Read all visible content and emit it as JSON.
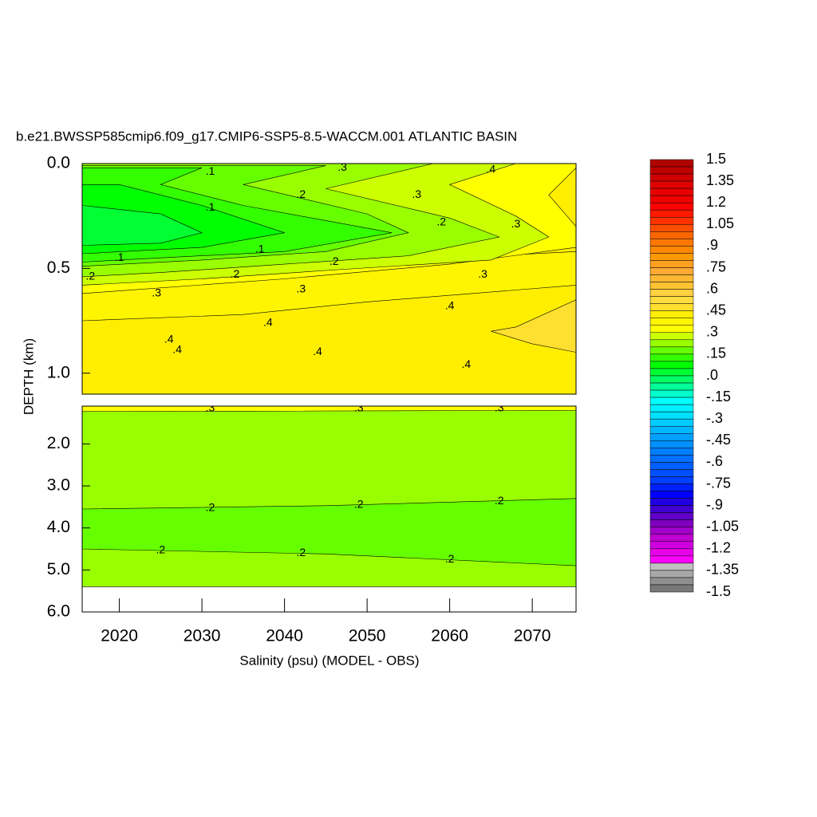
{
  "chart_data": {
    "type": "contour",
    "title": "b.e21.BWSSP585cmip6.f09_g17.CMIP6-SSP5-8.5-WACCM.001 ATLANTIC BASIN",
    "xlabel": "Salinity (psu) (MODEL - OBS)",
    "ylabel": "DEPTH (km)",
    "xlim": [
      2015.5,
      2075.3
    ],
    "xticks": [
      2020,
      2030,
      2040,
      2050,
      2060,
      2070
    ],
    "panels": [
      {
        "ylim": [
          0,
          1.1
        ],
        "yticks": [
          {
            "value": 0,
            "label": "0.0"
          },
          {
            "value": 0.5,
            "label": "0.5"
          },
          {
            "value": 1,
            "label": "1.0"
          }
        ],
        "regions": [
          {
            "level": 0.42,
            "polygon": [
              [
                2015.5,
                0
              ],
              [
                2075.3,
                0
              ],
              [
                2075.3,
                1.1
              ],
              [
                2015.5,
                1.1
              ]
            ]
          },
          {
            "level": 0.47,
            "polygon": [
              [
                2075.3,
                0.65
              ],
              [
                2068,
                0.78
              ],
              [
                2065,
                0.8
              ],
              [
                2070,
                0.86
              ],
              [
                2075.3,
                0.9
              ]
            ]
          },
          {
            "level": 0.37,
            "polygon": [
              [
                2015.5,
                0.55
              ],
              [
                2040,
                0.5
              ],
              [
                2060,
                0.45
              ],
              [
                2075.3,
                0.42
              ],
              [
                2075.3,
                0.58
              ],
              [
                2050,
                0.66
              ],
              [
                2035,
                0.72
              ],
              [
                2015.5,
                0.75
              ]
            ]
          },
          {
            "level": 0.32,
            "polygon": [
              [
                2015.5,
                0
              ],
              [
                2075.3,
                0
              ],
              [
                2075.3,
                0.02
              ],
              [
                2072,
                0.15
              ],
              [
                2075.3,
                0.3
              ],
              [
                2075.3,
                0.4
              ],
              [
                2060,
                0.48
              ],
              [
                2040,
                0.55
              ],
              [
                2015.5,
                0.62
              ]
            ]
          },
          {
            "level": 0.27,
            "polygon": [
              [
                2015.5,
                0
              ],
              [
                2068,
                0
              ],
              [
                2060,
                0.1
              ],
              [
                2068,
                0.25
              ],
              [
                2072,
                0.35
              ],
              [
                2065,
                0.46
              ],
              [
                2045,
                0.51
              ],
              [
                2030,
                0.55
              ],
              [
                2015.5,
                0.58
              ]
            ]
          },
          {
            "level": 0.22,
            "polygon": [
              [
                2015.5,
                0
              ],
              [
                2058,
                0
              ],
              [
                2045,
                0.12
              ],
              [
                2060,
                0.26
              ],
              [
                2066,
                0.35
              ],
              [
                2055,
                0.44
              ],
              [
                2040,
                0.48
              ],
              [
                2025,
                0.52
              ],
              [
                2015.5,
                0.54
              ]
            ]
          },
          {
            "level": 0.17,
            "polygon": [
              [
                2015.5,
                0.01
              ],
              [
                2045,
                0.01
              ],
              [
                2035,
                0.1
              ],
              [
                2050,
                0.24
              ],
              [
                2055,
                0.33
              ],
              [
                2045,
                0.42
              ],
              [
                2030,
                0.46
              ],
              [
                2015.5,
                0.49
              ]
            ]
          },
          {
            "level": 0.12,
            "polygon": [
              [
                2015.5,
                0.02
              ],
              [
                2030,
                0.02
              ],
              [
                2025,
                0.1
              ],
              [
                2035,
                0.2
              ],
              [
                2053,
                0.33
              ],
              [
                2040,
                0.42
              ],
              [
                2025,
                0.45
              ],
              [
                2015.5,
                0.47
              ]
            ]
          },
          {
            "level": 0.07,
            "polygon": [
              [
                2015.5,
                0.1
              ],
              [
                2020,
                0.1
              ],
              [
                2030,
                0.2
              ],
              [
                2040,
                0.33
              ],
              [
                2030,
                0.4
              ],
              [
                2015.5,
                0.43
              ]
            ]
          },
          {
            "level": 0.02,
            "polygon": [
              [
                2015.5,
                0.2
              ],
              [
                2025,
                0.24
              ],
              [
                2030,
                0.33
              ],
              [
                2025,
                0.38
              ],
              [
                2015.5,
                0.39
              ]
            ]
          }
        ],
        "contour_labels": [
          {
            "x": 2031,
            "depth": 0.04,
            "level": 0.1,
            "label": ".1"
          },
          {
            "x": 2047,
            "depth": 0.02,
            "level": 0.3,
            "label": ".3"
          },
          {
            "x": 2065,
            "depth": 0.03,
            "level": 0.4,
            "label": ".4"
          },
          {
            "x": 2042,
            "depth": 0.15,
            "level": 0.2,
            "label": ".2"
          },
          {
            "x": 2056,
            "depth": 0.15,
            "level": 0.3,
            "label": ".3"
          },
          {
            "x": 2031,
            "depth": 0.21,
            "level": 0.1,
            "label": ".1"
          },
          {
            "x": 2059,
            "depth": 0.28,
            "level": 0.2,
            "label": ".2"
          },
          {
            "x": 2068,
            "depth": 0.29,
            "level": 0.3,
            "label": ".3"
          },
          {
            "x": 2037,
            "depth": 0.41,
            "level": 0.1,
            "label": ".1"
          },
          {
            "x": 2020,
            "depth": 0.45,
            "level": 0.1,
            "label": ".1"
          },
          {
            "x": 2046,
            "depth": 0.47,
            "level": 0.2,
            "label": ".2"
          },
          {
            "x": 2016.5,
            "depth": 0.54,
            "level": 0.2,
            "label": ".2"
          },
          {
            "x": 2034,
            "depth": 0.53,
            "level": 0.2,
            "label": ".2"
          },
          {
            "x": 2064,
            "depth": 0.53,
            "level": 0.3,
            "label": ".3"
          },
          {
            "x": 2024.5,
            "depth": 0.62,
            "level": 0.3,
            "label": ".3"
          },
          {
            "x": 2042,
            "depth": 0.6,
            "level": 0.3,
            "label": ".3"
          },
          {
            "x": 2060,
            "depth": 0.68,
            "level": 0.4,
            "label": ".4"
          },
          {
            "x": 2038,
            "depth": 0.76,
            "level": 0.4,
            "label": ".4"
          },
          {
            "x": 2026,
            "depth": 0.84,
            "level": 0.4,
            "label": ".4"
          },
          {
            "x": 2027,
            "depth": 0.89,
            "level": 0.4,
            "label": ".4"
          },
          {
            "x": 2044,
            "depth": 0.9,
            "level": 0.4,
            "label": ".4"
          },
          {
            "x": 2062,
            "depth": 0.96,
            "level": 0.4,
            "label": ".4"
          }
        ]
      },
      {
        "ylim": [
          1.1,
          6
        ],
        "yticks": [
          {
            "value": 2,
            "label": "2.0"
          },
          {
            "value": 3,
            "label": "3.0"
          },
          {
            "value": 4,
            "label": "4.0"
          },
          {
            "value": 5,
            "label": "5.0"
          },
          {
            "value": 6,
            "label": "6.0"
          }
        ],
        "regions": [
          {
            "level": 0.22,
            "polygon": [
              [
                2015.5,
                1.1
              ],
              [
                2075.3,
                1.1
              ],
              [
                2075.3,
                5.4
              ],
              [
                2015.5,
                5.4
              ]
            ]
          },
          {
            "level": 0.32,
            "polygon": [
              [
                2015.5,
                1.1
              ],
              [
                2075.3,
                1.1
              ],
              [
                2075.3,
                1.2
              ],
              [
                2015.5,
                1.23
              ]
            ]
          },
          {
            "level": 0.17,
            "polygon": [
              [
                2015.5,
                3.55
              ],
              [
                2045,
                3.47
              ],
              [
                2075.3,
                3.3
              ],
              [
                2075.3,
                4.9
              ],
              [
                2045,
                4.62
              ],
              [
                2015.5,
                4.5
              ]
            ]
          }
        ],
        "contour_labels": [
          {
            "x": 2031,
            "depth": 1.15,
            "level": 0.3,
            "label": ".3"
          },
          {
            "x": 2049,
            "depth": 1.15,
            "level": 0.3,
            "label": ".3"
          },
          {
            "x": 2066,
            "depth": 1.15,
            "level": 0.3,
            "label": ".3"
          },
          {
            "x": 2031,
            "depth": 3.53,
            "level": 0.2,
            "label": ".2"
          },
          {
            "x": 2049,
            "depth": 3.45,
            "level": 0.2,
            "label": ".2"
          },
          {
            "x": 2066,
            "depth": 3.37,
            "level": 0.2,
            "label": ".2"
          },
          {
            "x": 2025,
            "depth": 4.53,
            "level": 0.2,
            "label": ".2"
          },
          {
            "x": 2042,
            "depth": 4.6,
            "level": 0.2,
            "label": ".2"
          },
          {
            "x": 2060,
            "depth": 4.75,
            "level": 0.2,
            "label": ".2"
          }
        ]
      }
    ],
    "colorbar": {
      "clim": [
        -1.5,
        1.5
      ],
      "colors": [
        "#b00000",
        "#c00000",
        "#d00000",
        "#e00000",
        "#e80000",
        "#f00000",
        "#ff0000",
        "#ff1a00",
        "#ff3300",
        "#ff4d00",
        "#ff6600",
        "#ff7700",
        "#ff8800",
        "#ff9900",
        "#ffa020",
        "#ffaa33",
        "#ffb833",
        "#ffc433",
        "#ffd040",
        "#ffdc40",
        "#ffe030",
        "#ffee00",
        "#fff500",
        "#ffff00",
        "#ccff00",
        "#99ff00",
        "#66ff00",
        "#33ff00",
        "#00ff00",
        "#00ff33",
        "#00ff66",
        "#00ff99",
        "#00ffcc",
        "#00ffff",
        "#00f0ff",
        "#00e0ff",
        "#00ccff",
        "#00b8ff",
        "#00a0ff",
        "#0090ff",
        "#0080ff",
        "#0070ff",
        "#0060ff",
        "#0050ff",
        "#0040ff",
        "#0020ff",
        "#0000ff",
        "#2000e0",
        "#4000d0",
        "#6000c8",
        "#8000c0",
        "#a000c8",
        "#c000d0",
        "#d000e0",
        "#e800e8",
        "#ff00ff",
        "#c0c0c0",
        "#a8a8a8",
        "#909090",
        "#787878"
      ],
      "ticks": [
        1.5,
        1.35,
        1.2,
        1.05,
        {
          "value": 0.9,
          "label": ".9"
        },
        {
          "value": 0.75,
          "label": ".75"
        },
        {
          "value": 0.6,
          "label": ".6"
        },
        {
          "value": 0.45,
          "label": ".45"
        },
        {
          "value": 0.3,
          "label": ".3"
        },
        {
          "value": 0.15,
          "label": ".15"
        },
        {
          "value": 0,
          "label": ".0"
        },
        {
          "value": -0.15,
          "label": "-.15"
        },
        {
          "value": -0.3,
          "label": "-.3"
        },
        {
          "value": -0.45,
          "label": "-.45"
        },
        {
          "value": -0.6,
          "label": "-.6"
        },
        {
          "value": -0.75,
          "label": "-.75"
        },
        {
          "value": -0.9,
          "label": "-.9"
        },
        -1.05,
        -1.2,
        -1.35,
        -1.5
      ]
    }
  }
}
